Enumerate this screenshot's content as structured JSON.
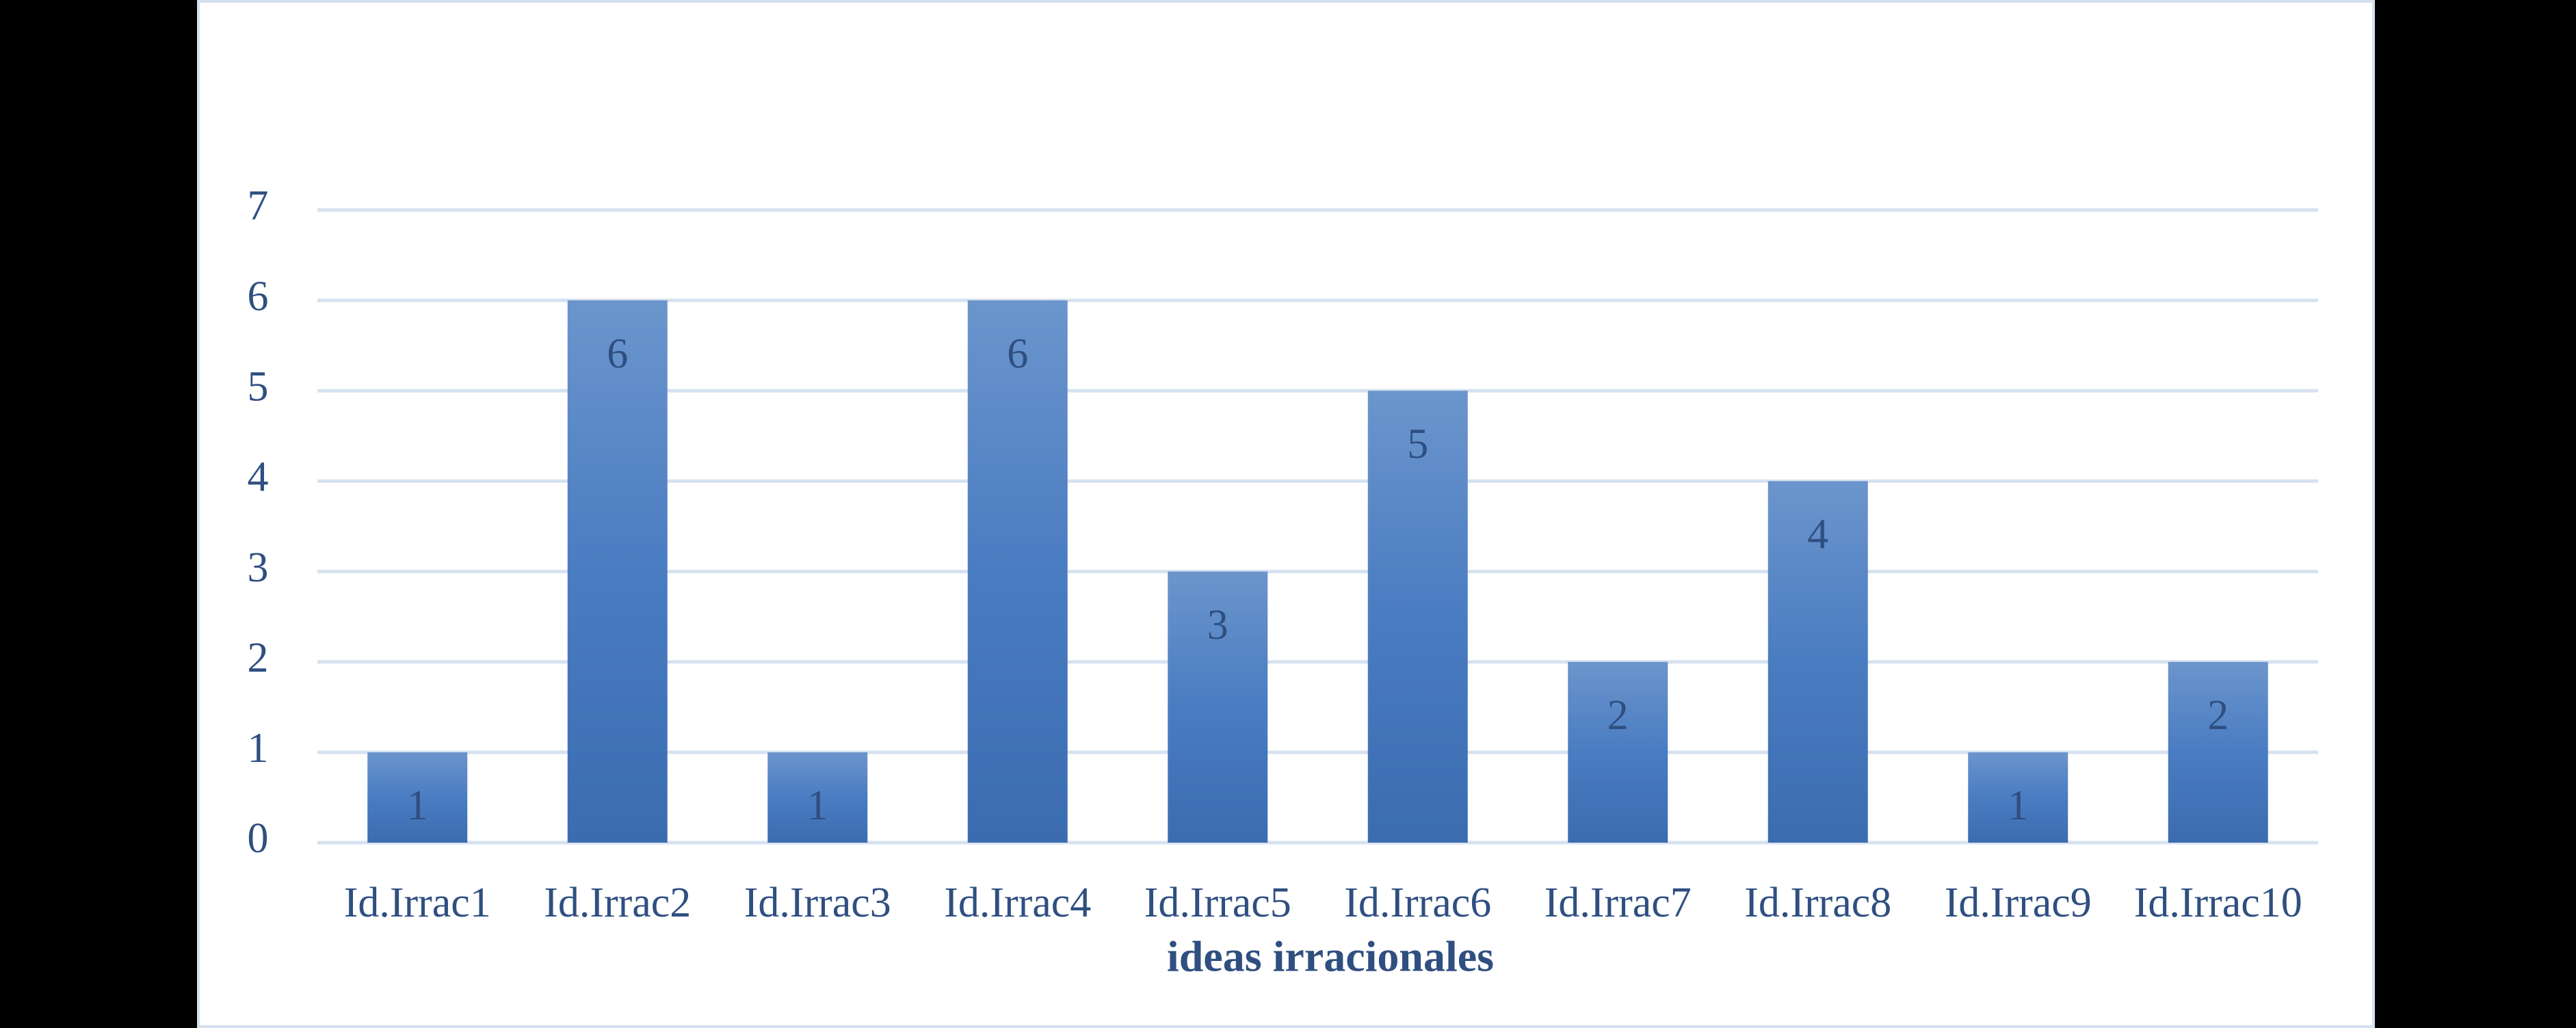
{
  "chart_data": {
    "type": "bar",
    "x_label": "ideas irracionales",
    "categories": [
      "Id.Irrac1",
      "Id.Irrac2",
      "Id.Irrac3",
      "Id.Irrac4",
      "Id.Irrac5",
      "Id.Irrac6",
      "Id.Irrac7",
      "Id.Irrac8",
      "Id.Irrac9",
      "Id.Irrac10"
    ],
    "values": [
      1,
      6,
      1,
      6,
      3,
      5,
      2,
      4,
      1,
      2
    ],
    "color": "#4a7bbf",
    "ylim": [
      0,
      7
    ],
    "yticks": [
      0,
      1,
      2,
      3,
      4,
      5,
      6,
      7
    ],
    "grid": true
  }
}
